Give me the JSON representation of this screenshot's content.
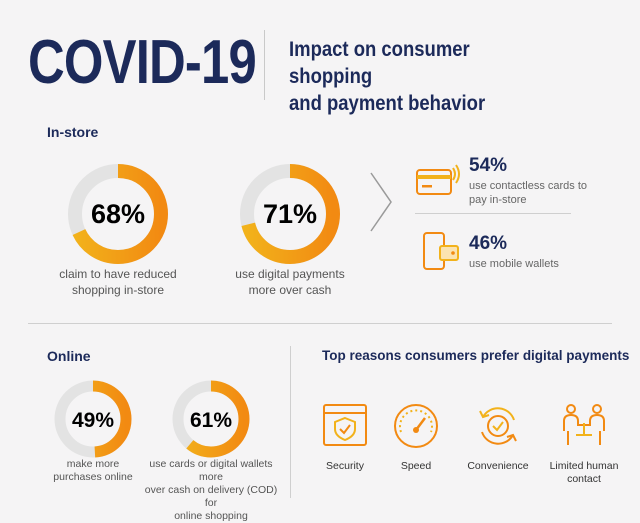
{
  "header": {
    "title": "COVID-19",
    "subtitle_line1": "Impact on consumer shopping",
    "subtitle_line2": "and payment behavior"
  },
  "colors": {
    "navy": "#1c2a5a",
    "gold": "#f2b21b",
    "orange": "#f28a12",
    "track": "#e3e3e3"
  },
  "in_store": {
    "label": "In-store",
    "rings": [
      {
        "percent_label": "68%",
        "value": 0.68,
        "caption_line1": "claim to have reduced",
        "caption_line2": "shopping in-store"
      },
      {
        "percent_label": "71%",
        "value": 0.71,
        "caption_line1": "use digital payments",
        "caption_line2": "more over cash"
      }
    ],
    "stats": [
      {
        "percent_label": "54%",
        "text_line1": "use contactless cards to",
        "text_line2": "pay in-store",
        "icon": "contactless-card-icon"
      },
      {
        "percent_label": "46%",
        "text_line1": "use mobile wallets",
        "text_line2": "",
        "icon": "mobile-wallet-icon"
      }
    ]
  },
  "online": {
    "label": "Online",
    "rings": [
      {
        "percent_label": "49%",
        "value": 0.49,
        "caption_line1": "make more",
        "caption_line2": "purchases online",
        "caption_line3": ""
      },
      {
        "percent_label": "61%",
        "value": 0.61,
        "caption_line1": "use cards or digital wallets more",
        "caption_line2": "over cash on delivery (COD) for",
        "caption_line3": "online shopping"
      }
    ]
  },
  "reasons": {
    "title": "Top reasons consumers prefer digital payments",
    "items": [
      {
        "label_line1": "Security",
        "label_line2": "",
        "icon": "security-shield-icon"
      },
      {
        "label_line1": "Speed",
        "label_line2": "",
        "icon": "speedometer-icon"
      },
      {
        "label_line1": "Convenience",
        "label_line2": "",
        "icon": "convenience-check-icon"
      },
      {
        "label_line1": "Limited human",
        "label_line2": "contact",
        "icon": "limited-contact-icon"
      }
    ]
  }
}
